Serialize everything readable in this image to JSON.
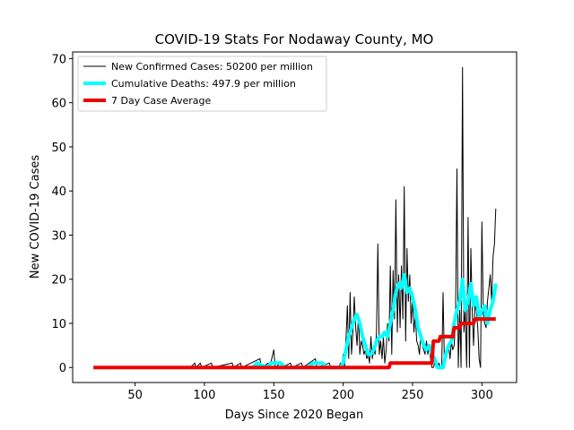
{
  "chart_data": {
    "type": "line",
    "title": "COVID-19 Stats For Nodaway County, MO",
    "xlabel": "Days Since 2020 Began",
    "ylabel": "New COVID-19 Cases",
    "xlim": [
      5,
      325
    ],
    "ylim": [
      -3.4,
      71.5
    ],
    "xticks": [
      50,
      100,
      150,
      200,
      250,
      300
    ],
    "yticks": [
      0,
      10,
      20,
      30,
      40,
      50,
      60,
      70
    ],
    "grid": false,
    "legend_position": "top-left",
    "series": [
      {
        "name": "New Confirmed Cases: 50200 per million",
        "color": "#000000",
        "points": [
          [
            20,
            0
          ],
          [
            90,
            0
          ],
          [
            93,
            1
          ],
          [
            94,
            0
          ],
          [
            97,
            1
          ],
          [
            98,
            0
          ],
          [
            105,
            1
          ],
          [
            106,
            0
          ],
          [
            120,
            1
          ],
          [
            121,
            0
          ],
          [
            126,
            1
          ],
          [
            127,
            0
          ],
          [
            140,
            2
          ],
          [
            141,
            0
          ],
          [
            146,
            1
          ],
          [
            147,
            0
          ],
          [
            150,
            4
          ],
          [
            151,
            0
          ],
          [
            155,
            1
          ],
          [
            156,
            0
          ],
          [
            162,
            1
          ],
          [
            163,
            0
          ],
          [
            170,
            1
          ],
          [
            171,
            0
          ],
          [
            180,
            2
          ],
          [
            181,
            0
          ],
          [
            190,
            1
          ],
          [
            191,
            0
          ],
          [
            197,
            0
          ],
          [
            198,
            1
          ],
          [
            199,
            0
          ],
          [
            200,
            3
          ],
          [
            201,
            0
          ],
          [
            202,
            6
          ],
          [
            203,
            14
          ],
          [
            204,
            2
          ],
          [
            205,
            17
          ],
          [
            206,
            3
          ],
          [
            207,
            8
          ],
          [
            208,
            16
          ],
          [
            209,
            9
          ],
          [
            210,
            5
          ],
          [
            211,
            12
          ],
          [
            212,
            3
          ],
          [
            213,
            6
          ],
          [
            214,
            5
          ],
          [
            215,
            3
          ],
          [
            216,
            4
          ],
          [
            217,
            2
          ],
          [
            218,
            3
          ],
          [
            219,
            1
          ],
          [
            220,
            7
          ],
          [
            221,
            2
          ],
          [
            222,
            4
          ],
          [
            223,
            3
          ],
          [
            224,
            8
          ],
          [
            225,
            28
          ],
          [
            226,
            3
          ],
          [
            227,
            6
          ],
          [
            228,
            2
          ],
          [
            229,
            7
          ],
          [
            230,
            1
          ],
          [
            231,
            4
          ],
          [
            232,
            10
          ],
          [
            233,
            6
          ],
          [
            234,
            23
          ],
          [
            235,
            3
          ],
          [
            236,
            22
          ],
          [
            237,
            11
          ],
          [
            238,
            38
          ],
          [
            239,
            8
          ],
          [
            240,
            21
          ],
          [
            241,
            9
          ],
          [
            242,
            23
          ],
          [
            243,
            11
          ],
          [
            244,
            41
          ],
          [
            245,
            6
          ],
          [
            246,
            27
          ],
          [
            247,
            15
          ],
          [
            248,
            21
          ],
          [
            249,
            10
          ],
          [
            250,
            16
          ],
          [
            251,
            8
          ],
          [
            252,
            12
          ],
          [
            253,
            6
          ],
          [
            254,
            5
          ],
          [
            255,
            3
          ],
          [
            256,
            8
          ],
          [
            257,
            5
          ],
          [
            258,
            4
          ],
          [
            259,
            3
          ],
          [
            260,
            6
          ],
          [
            261,
            3
          ],
          [
            262,
            5
          ],
          [
            263,
            2
          ],
          [
            264,
            0
          ],
          [
            265,
            0
          ],
          [
            266,
            1
          ],
          [
            267,
            0
          ],
          [
            268,
            0
          ],
          [
            269,
            1
          ],
          [
            270,
            0
          ],
          [
            271,
            0
          ],
          [
            272,
            17
          ],
          [
            273,
            0
          ],
          [
            274,
            4
          ],
          [
            275,
            3
          ],
          [
            276,
            5
          ],
          [
            277,
            2
          ],
          [
            278,
            6
          ],
          [
            279,
            4
          ],
          [
            280,
            5
          ],
          [
            281,
            11
          ],
          [
            282,
            45
          ],
          [
            283,
            0
          ],
          [
            284,
            13
          ],
          [
            285,
            0
          ],
          [
            286,
            68
          ],
          [
            287,
            8
          ],
          [
            288,
            13
          ],
          [
            289,
            0
          ],
          [
            290,
            34
          ],
          [
            291,
            0
          ],
          [
            292,
            27
          ],
          [
            293,
            13
          ],
          [
            294,
            5
          ],
          [
            295,
            14
          ],
          [
            296,
            13
          ],
          [
            297,
            9
          ],
          [
            298,
            2
          ],
          [
            299,
            0
          ],
          [
            300,
            33
          ],
          [
            301,
            12
          ],
          [
            302,
            10
          ],
          [
            303,
            9
          ],
          [
            304,
            15
          ],
          [
            305,
            18
          ],
          [
            306,
            21
          ],
          [
            307,
            15
          ],
          [
            308,
            25
          ],
          [
            309,
            28
          ],
          [
            310,
            36
          ]
        ]
      },
      {
        "name": "Cumulative Deaths: 497.9 per million",
        "color": "#00ffff",
        "points": [
          [
            135,
            0
          ],
          [
            138,
            1
          ],
          [
            145,
            0
          ],
          [
            148,
            1
          ],
          [
            155,
            1
          ],
          [
            158,
            0
          ],
          [
            175,
            0
          ],
          [
            178,
            1
          ],
          [
            185,
            1
          ],
          [
            188,
            0
          ],
          [
            198,
            0
          ],
          [
            200,
            1
          ],
          [
            202,
            4
          ],
          [
            204,
            7
          ],
          [
            206,
            9
          ],
          [
            208,
            11
          ],
          [
            210,
            12
          ],
          [
            212,
            10
          ],
          [
            214,
            7
          ],
          [
            216,
            5
          ],
          [
            218,
            3
          ],
          [
            220,
            3
          ],
          [
            222,
            4
          ],
          [
            224,
            6
          ],
          [
            226,
            7
          ],
          [
            228,
            7
          ],
          [
            230,
            8
          ],
          [
            232,
            7
          ],
          [
            234,
            10
          ],
          [
            236,
            13
          ],
          [
            238,
            17
          ],
          [
            240,
            19
          ],
          [
            242,
            18
          ],
          [
            244,
            21
          ],
          [
            246,
            17
          ],
          [
            248,
            18
          ],
          [
            250,
            16
          ],
          [
            252,
            13
          ],
          [
            254,
            9
          ],
          [
            256,
            7
          ],
          [
            258,
            5
          ],
          [
            260,
            4
          ],
          [
            262,
            5
          ],
          [
            264,
            3
          ],
          [
            266,
            2
          ],
          [
            268,
            0
          ],
          [
            270,
            0
          ],
          [
            272,
            0
          ],
          [
            274,
            3
          ],
          [
            276,
            5
          ],
          [
            278,
            6
          ],
          [
            280,
            10
          ],
          [
            282,
            13
          ],
          [
            284,
            15
          ],
          [
            286,
            20
          ],
          [
            288,
            13
          ],
          [
            290,
            15
          ],
          [
            292,
            19
          ],
          [
            294,
            14
          ],
          [
            296,
            16
          ],
          [
            298,
            11
          ],
          [
            300,
            13
          ],
          [
            302,
            14
          ],
          [
            304,
            10
          ],
          [
            306,
            13
          ],
          [
            308,
            15
          ],
          [
            310,
            19
          ]
        ]
      },
      {
        "name": "7 Day Case Average",
        "color": "#ee0000",
        "points": [
          [
            20,
            0
          ],
          [
            233,
            0
          ],
          [
            234,
            1
          ],
          [
            264,
            1
          ],
          [
            265,
            6
          ],
          [
            269,
            6
          ],
          [
            270,
            7
          ],
          [
            279,
            7
          ],
          [
            280,
            9
          ],
          [
            284,
            9
          ],
          [
            285,
            10
          ],
          [
            294,
            10
          ],
          [
            295,
            11
          ],
          [
            310,
            11
          ]
        ]
      }
    ]
  }
}
